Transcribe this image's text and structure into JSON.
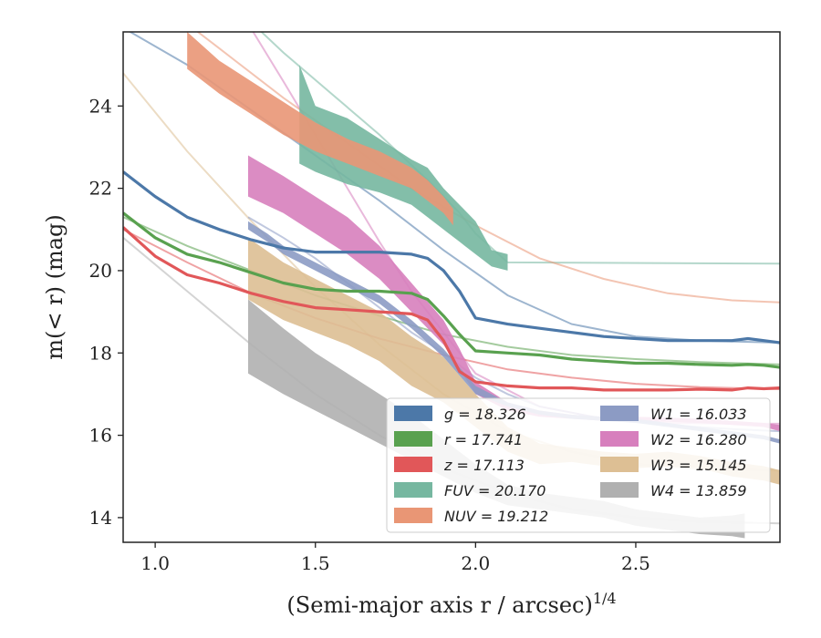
{
  "chart_data": {
    "type": "line",
    "title": "",
    "xlabel": "(Semi-major axis r / arcsec)",
    "xlabel_sup": "1/4",
    "ylabel": "m(< r) (mag)",
    "xlim": [
      0.9,
      2.95
    ],
    "ylim": [
      25.8,
      13.4
    ],
    "y_inverted": true,
    "x_ticks": [
      "1.0",
      "1.5",
      "2.0",
      "2.5"
    ],
    "y_ticks": [
      "14",
      "16",
      "18",
      "20",
      "22",
      "24"
    ],
    "legend_position": "lower-right",
    "series": [
      {
        "name": "g",
        "legend": "g = 18.326",
        "color": "#4c78a8",
        "obs_x": [
          0.9,
          1.0,
          1.1,
          1.2,
          1.3,
          1.4,
          1.5,
          1.6,
          1.7,
          1.8,
          1.85,
          1.9,
          1.95,
          2.0,
          2.1,
          2.2,
          2.3,
          2.4,
          2.5,
          2.6,
          2.7,
          2.8,
          2.85,
          2.9,
          2.95
        ],
        "obs_y": [
          22.4,
          21.8,
          21.3,
          21.0,
          20.75,
          20.55,
          20.45,
          20.45,
          20.45,
          20.4,
          20.3,
          20.0,
          19.5,
          18.85,
          18.7,
          18.6,
          18.5,
          18.4,
          18.35,
          18.3,
          18.3,
          18.3,
          18.35,
          18.3,
          18.25
        ],
        "band_halfwidth": 0.04,
        "model_x": [
          0.9,
          1.1,
          1.3,
          1.5,
          1.7,
          1.9,
          2.1,
          2.3,
          2.5,
          2.7,
          2.95
        ],
        "model_y": [
          25.9,
          25.0,
          23.9,
          22.8,
          21.7,
          20.5,
          19.4,
          18.7,
          18.4,
          18.3,
          18.25
        ]
      },
      {
        "name": "r",
        "legend": "r = 17.741",
        "color": "#59a14f",
        "obs_x": [
          0.9,
          1.0,
          1.1,
          1.2,
          1.3,
          1.4,
          1.5,
          1.6,
          1.7,
          1.8,
          1.85,
          1.9,
          1.95,
          2.0,
          2.1,
          2.2,
          2.3,
          2.4,
          2.5,
          2.6,
          2.7,
          2.8,
          2.85,
          2.9,
          2.95
        ],
        "obs_y": [
          21.4,
          20.8,
          20.4,
          20.2,
          19.95,
          19.7,
          19.55,
          19.5,
          19.5,
          19.45,
          19.3,
          18.9,
          18.45,
          18.05,
          18.0,
          17.95,
          17.85,
          17.8,
          17.75,
          17.75,
          17.72,
          17.7,
          17.72,
          17.7,
          17.65
        ],
        "band_halfwidth": 0.05,
        "model_x": [
          0.9,
          1.1,
          1.3,
          1.5,
          1.7,
          1.9,
          2.1,
          2.3,
          2.5,
          2.7,
          2.95
        ],
        "model_y": [
          21.3,
          20.6,
          20.0,
          19.4,
          18.9,
          18.45,
          18.15,
          17.95,
          17.85,
          17.78,
          17.72
        ]
      },
      {
        "name": "z",
        "legend": "z = 17.113",
        "color": "#e15759",
        "obs_x": [
          0.9,
          1.0,
          1.1,
          1.2,
          1.3,
          1.4,
          1.5,
          1.6,
          1.7,
          1.8,
          1.85,
          1.9,
          1.95,
          2.0,
          2.1,
          2.2,
          2.3,
          2.4,
          2.5,
          2.6,
          2.7,
          2.8,
          2.85,
          2.9,
          2.95
        ],
        "obs_y": [
          21.05,
          20.35,
          19.9,
          19.7,
          19.45,
          19.25,
          19.1,
          19.05,
          19.0,
          18.95,
          18.8,
          18.3,
          17.55,
          17.3,
          17.2,
          17.15,
          17.15,
          17.1,
          17.1,
          17.1,
          17.12,
          17.1,
          17.15,
          17.13,
          17.15
        ],
        "band_halfwidth": 0.05,
        "model_x": [
          0.9,
          1.1,
          1.3,
          1.5,
          1.7,
          1.9,
          2.1,
          2.3,
          2.5,
          2.7,
          2.95
        ],
        "model_y": [
          21.0,
          20.2,
          19.45,
          18.85,
          18.35,
          17.95,
          17.6,
          17.4,
          17.25,
          17.17,
          17.12
        ]
      },
      {
        "name": "FUV",
        "legend": "FUV = 20.170",
        "color": "#76b7a0",
        "obs_x": [
          1.45,
          1.5,
          1.6,
          1.7,
          1.8,
          1.85,
          1.9,
          1.95,
          2.0,
          2.05,
          2.1
        ],
        "obs_y_top": [
          22.6,
          22.4,
          22.1,
          21.9,
          21.6,
          21.3,
          21.0,
          20.7,
          20.4,
          20.1,
          20.0
        ],
        "obs_y_bottom": [
          25.0,
          24.0,
          23.7,
          23.2,
          22.7,
          22.5,
          22.0,
          21.6,
          21.2,
          20.5,
          20.4
        ],
        "model_x": [
          1.25,
          1.4,
          1.55,
          1.7,
          1.85,
          1.95,
          2.0,
          2.1,
          2.95
        ],
        "model_y": [
          26.4,
          25.3,
          24.3,
          23.3,
          22.2,
          21.4,
          20.9,
          20.2,
          20.17
        ]
      },
      {
        "name": "NUV",
        "legend": "NUV = 19.212",
        "color": "#e99675",
        "obs_x": [
          1.1,
          1.2,
          1.3,
          1.4,
          1.5,
          1.6,
          1.7,
          1.8,
          1.85,
          1.9,
          1.93
        ],
        "obs_y_top": [
          24.9,
          24.3,
          23.8,
          23.3,
          22.9,
          22.6,
          22.3,
          22.0,
          21.7,
          21.4,
          21.1
        ],
        "obs_y_bottom": [
          25.8,
          25.1,
          24.6,
          24.1,
          23.6,
          23.2,
          22.9,
          22.5,
          22.2,
          21.8,
          21.5
        ],
        "model_x": [
          1.0,
          1.2,
          1.4,
          1.6,
          1.8,
          2.0,
          2.2,
          2.4,
          2.6,
          2.8,
          2.95
        ],
        "model_y": [
          26.6,
          25.4,
          24.2,
          23.1,
          22.0,
          21.1,
          20.3,
          19.8,
          19.45,
          19.28,
          19.23
        ]
      },
      {
        "name": "W1",
        "legend": "W1 = 16.033",
        "color": "#8c9bc4",
        "obs_x": [
          1.29,
          1.35,
          1.4,
          1.5,
          1.6,
          1.7,
          1.8,
          1.9,
          2.0,
          2.1,
          2.2,
          2.3,
          2.4,
          2.5,
          2.6,
          2.7,
          2.8,
          2.9,
          2.95
        ],
        "obs_y_top": [
          21.0,
          20.7,
          20.4,
          20.0,
          19.6,
          19.2,
          18.6,
          17.9,
          17.0,
          16.7,
          16.5,
          16.4,
          16.35,
          16.3,
          16.2,
          16.1,
          16.0,
          15.9,
          15.8
        ],
        "obs_y_bottom": [
          21.2,
          20.9,
          20.6,
          20.2,
          19.8,
          19.4,
          18.8,
          18.1,
          17.2,
          16.8,
          16.6,
          16.5,
          16.45,
          16.4,
          16.3,
          16.2,
          16.1,
          16.0,
          15.9
        ],
        "model_x": [
          1.29,
          1.4,
          1.5,
          1.6,
          1.7,
          1.8,
          1.9,
          2.0,
          2.1,
          2.2,
          2.4,
          2.6,
          2.8,
          2.95
        ],
        "model_y": [
          21.3,
          20.8,
          20.3,
          19.7,
          19.1,
          18.5,
          18.0,
          17.4,
          17.0,
          16.7,
          16.4,
          16.25,
          16.15,
          16.1
        ]
      },
      {
        "name": "W2",
        "legend": "W2 = 16.280",
        "color": "#d77fbd",
        "obs_x": [
          1.29,
          1.4,
          1.5,
          1.6,
          1.7,
          1.8,
          1.9,
          1.95,
          2.0,
          2.1,
          2.2,
          2.3,
          2.4,
          2.5,
          2.6,
          2.7,
          2.8,
          2.9,
          2.95
        ],
        "obs_y_top": [
          21.8,
          21.4,
          20.9,
          20.4,
          19.8,
          19.0,
          18.2,
          17.6,
          17.0,
          16.6,
          16.45,
          16.4,
          16.35,
          16.35,
          16.33,
          16.3,
          16.25,
          16.2,
          16.1
        ],
        "obs_y_bottom": [
          22.8,
          22.3,
          21.8,
          21.3,
          20.6,
          19.7,
          18.8,
          18.1,
          17.3,
          16.8,
          16.6,
          16.5,
          16.45,
          16.45,
          16.43,
          16.4,
          16.35,
          16.3,
          16.25
        ],
        "model_x": [
          1.29,
          1.4,
          1.5,
          1.6,
          1.7,
          1.8,
          1.9,
          2.0,
          2.2,
          2.4,
          2.6,
          2.8,
          2.95
        ],
        "model_y": [
          26.0,
          24.6,
          23.3,
          22.0,
          20.7,
          19.5,
          18.5,
          17.5,
          16.7,
          16.4,
          16.3,
          16.28,
          16.28
        ]
      },
      {
        "name": "W3",
        "legend": "W3 = 15.145",
        "color": "#ddbf94",
        "obs_x": [
          1.29,
          1.4,
          1.5,
          1.6,
          1.7,
          1.8,
          1.9,
          2.0,
          2.1,
          2.2,
          2.3,
          2.4,
          2.5,
          2.6,
          2.7,
          2.8,
          2.9,
          2.95
        ],
        "obs_y_top": [
          19.3,
          18.8,
          18.5,
          18.2,
          17.8,
          17.2,
          16.8,
          16.2,
          15.6,
          15.3,
          15.35,
          15.25,
          15.2,
          15.25,
          15.2,
          15.0,
          14.9,
          14.8
        ],
        "obs_y_bottom": [
          20.8,
          20.2,
          19.8,
          19.4,
          19.0,
          18.4,
          17.9,
          17.0,
          16.2,
          15.8,
          15.7,
          15.6,
          15.55,
          15.6,
          15.5,
          15.35,
          15.25,
          15.15
        ],
        "model_x": [
          0.9,
          1.1,
          1.3,
          1.5,
          1.7,
          1.9,
          2.1,
          2.3,
          2.5,
          2.7,
          2.95
        ],
        "model_y": [
          24.8,
          22.9,
          21.2,
          19.6,
          18.2,
          17.0,
          16.1,
          15.6,
          15.3,
          15.18,
          15.14
        ]
      },
      {
        "name": "W4",
        "legend": "W4 = 13.859",
        "color": "#b0b0b0",
        "obs_x": [
          1.29,
          1.4,
          1.5,
          1.6,
          1.7,
          1.8,
          1.9,
          2.0,
          2.1,
          2.2,
          2.3,
          2.4,
          2.5,
          2.6,
          2.7,
          2.8,
          2.84
        ],
        "obs_y_top": [
          17.5,
          17.0,
          16.6,
          16.2,
          15.8,
          15.4,
          15.0,
          14.6,
          14.3,
          14.2,
          14.1,
          14.0,
          13.8,
          13.7,
          13.6,
          13.55,
          13.5
        ],
        "obs_y_bottom": [
          19.3,
          18.6,
          18.0,
          17.5,
          17.0,
          16.5,
          15.9,
          15.3,
          14.8,
          14.6,
          14.5,
          14.4,
          14.2,
          14.1,
          14.0,
          14.05,
          14.1
        ],
        "model_x": [
          0.9,
          1.1,
          1.3,
          1.5,
          1.7,
          1.9,
          2.1,
          2.3,
          2.5,
          2.7,
          2.95
        ],
        "model_y": [
          20.8,
          19.5,
          18.2,
          17.0,
          16.0,
          15.2,
          14.6,
          14.2,
          14.0,
          13.9,
          13.86
        ]
      }
    ]
  }
}
